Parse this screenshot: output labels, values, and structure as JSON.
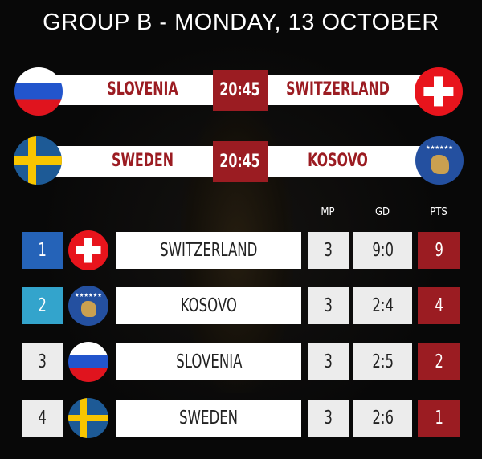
{
  "title": "GROUP B - MONDAY, 13 OCTOBER",
  "matches": [
    {
      "home": "SLOVENIA",
      "home_flag": "slovenia-flag-icon",
      "time": "20:45",
      "away": "SWITZERLAND",
      "away_flag": "switzerland-flag-icon"
    },
    {
      "home": "SWEDEN",
      "home_flag": "sweden-flag-icon",
      "time": "20:45",
      "away": "KOSOVO",
      "away_flag": "kosovo-flag-icon"
    }
  ],
  "table": {
    "headers": {
      "mp": "MP",
      "gd": "GD",
      "pts": "PTS"
    },
    "rows": [
      {
        "rank": "1",
        "team": "SWITZERLAND",
        "mp": "3",
        "gd": "9:0",
        "pts": "9",
        "rank_color": "#2563b8"
      },
      {
        "rank": "2",
        "team": "KOSOVO",
        "mp": "3",
        "gd": "2:4",
        "pts": "4",
        "rank_color": "#33a4cc"
      },
      {
        "rank": "3",
        "team": "SLOVENIA",
        "mp": "3",
        "gd": "2:5",
        "pts": "2",
        "rank_color": "#ececec"
      },
      {
        "rank": "4",
        "team": "SWEDEN",
        "mp": "3",
        "gd": "2:6",
        "pts": "1",
        "rank_color": "#ececec"
      }
    ]
  },
  "colors": {
    "accent": "#9b1c22",
    "background": "#080808"
  }
}
